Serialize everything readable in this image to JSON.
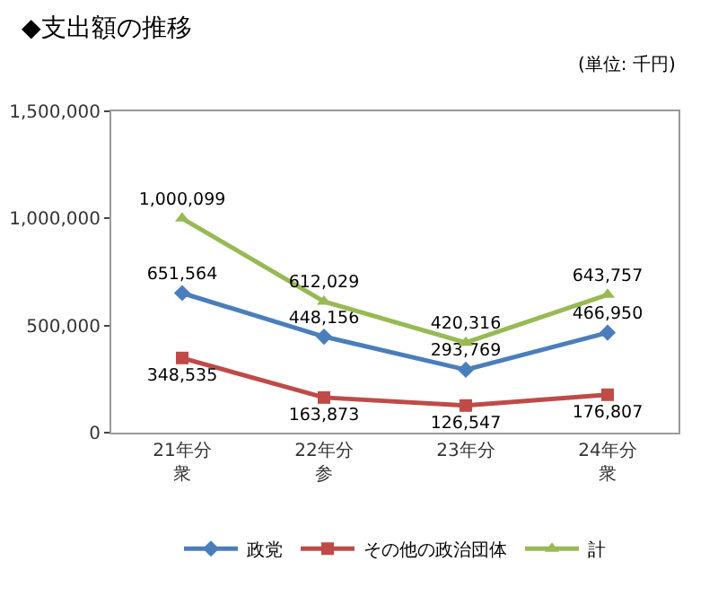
{
  "chart_data": {
    "type": "line",
    "title": "◆支出額の推移",
    "annotations": [
      "(単位: 千円)"
    ],
    "categories": [
      "21年分衆",
      "22年分参",
      "23年分",
      "24年分衆"
    ],
    "series": [
      {
        "name": "政党",
        "color": "#4a7ebb",
        "marker": "diamond",
        "values": [
          651564,
          448156,
          293769,
          466950
        ],
        "value_labels": [
          "651,564",
          "448,156",
          "293,769",
          "466,950"
        ]
      },
      {
        "name": "その他の政治団体",
        "color": "#be4b48",
        "marker": "square",
        "values": [
          348535,
          163873,
          126547,
          176807
        ],
        "value_labels": [
          "348,535",
          "163,873",
          "126,547",
          "176,807"
        ]
      },
      {
        "name": "計",
        "color": "#98b954",
        "marker": "triangle",
        "values": [
          1000099,
          612029,
          420316,
          643757
        ],
        "value_labels": [
          "1,000,099",
          "612,029",
          "420,316",
          "643,757"
        ]
      }
    ],
    "ylim": [
      0,
      1500000
    ],
    "yticks": [
      {
        "value": 0,
        "label": "0"
      },
      {
        "value": 500000,
        "label": "500,000"
      },
      {
        "value": 1000000,
        "label": "1,000,000"
      },
      {
        "value": 1500000,
        "label": "1,500,000"
      }
    ],
    "grid": false,
    "legend": "bottom"
  }
}
